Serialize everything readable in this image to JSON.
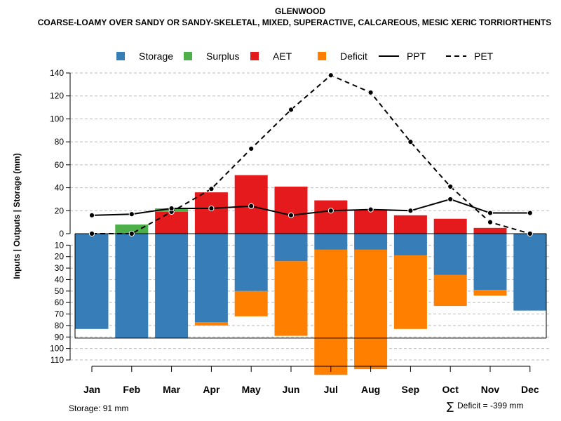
{
  "chart_data": {
    "type": "bar",
    "title": "GLENWOOD",
    "subtitle": "COARSE-LOAMY OVER SANDY OR SANDY-SKELETAL, MIXED, SUPERACTIVE, CALCAREOUS, MESIC XERIC TORRIORTHENTS",
    "ylabel": "Inputs | Outputs | Storage    (mm)",
    "categories": [
      "Jan",
      "Feb",
      "Mar",
      "Apr",
      "May",
      "Jun",
      "Jul",
      "Aug",
      "Sep",
      "Oct",
      "Nov",
      "Dec"
    ],
    "ylim_top": [
      0,
      140
    ],
    "yticks_top": [
      0,
      20,
      40,
      60,
      80,
      100,
      120,
      140
    ],
    "ylim_bottom": [
      0,
      110
    ],
    "yticks_bottom": [
      10,
      20,
      30,
      40,
      50,
      60,
      70,
      80,
      90,
      100,
      110
    ],
    "storage_capacity": 91,
    "legend": [
      "Storage",
      "Surplus",
      "AET",
      "Deficit",
      "PPT",
      "PET"
    ],
    "colors": {
      "storage": "#377EB8",
      "surplus": "#4DAF4A",
      "aet": "#E41A1C",
      "deficit": "#FF7F00",
      "line": "#000000",
      "grid": "#BBBBBB"
    },
    "series": [
      {
        "name": "AET",
        "values": [
          0,
          0,
          19,
          36,
          51,
          41,
          29,
          21,
          16,
          13,
          5,
          0
        ]
      },
      {
        "name": "Surplus",
        "values": [
          0,
          8,
          3,
          0,
          0,
          0,
          0,
          0,
          0,
          0,
          0,
          0
        ]
      },
      {
        "name": "Storage",
        "values": [
          83,
          91,
          91,
          77,
          50,
          24,
          14,
          14,
          19,
          36,
          49,
          67
        ]
      },
      {
        "name": "Deficit",
        "values": [
          0,
          0,
          0,
          3,
          22,
          65,
          109,
          104,
          64,
          27,
          5,
          0
        ]
      },
      {
        "name": "PPT",
        "values": [
          16,
          17,
          22,
          22,
          24,
          16,
          20,
          21,
          20,
          30,
          18,
          18
        ]
      },
      {
        "name": "PET",
        "values": [
          0,
          0,
          19,
          39,
          74,
          108,
          138,
          123,
          80,
          41,
          10,
          0
        ]
      }
    ]
  },
  "footer": {
    "storage_note": "Storage: 91 mm",
    "deficit_symbol": "∑",
    "deficit_note": "Deficit = -399 mm"
  }
}
